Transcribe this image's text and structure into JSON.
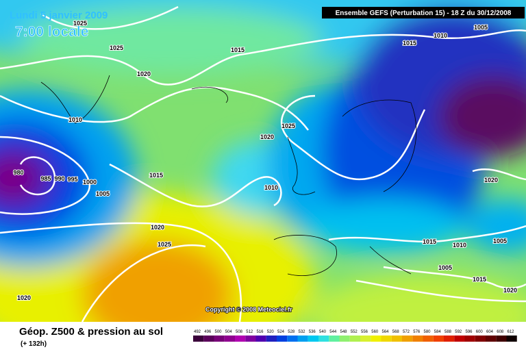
{
  "header": {
    "date": "Lundi 5 janvier 2009",
    "time": "7:00 locale",
    "model": "Ensemble GEFS (Perturbation 15)  -  18 Z du 30/12/2008"
  },
  "copyright": "Copyright © 2008 Meteociel.fr",
  "footer": {
    "title": "Géop. Z500 & pression au sol",
    "lead": "(+ 132h)"
  },
  "isobars": [
    "1025",
    "1025",
    "1015",
    "1010",
    "1005",
    "1015",
    "1020",
    "1010",
    "1025",
    "1020",
    "980",
    "985",
    "990",
    "995",
    "1000",
    "1005",
    "1015",
    "1010",
    "1020",
    "1020",
    "1025",
    "1015",
    "1010",
    "1005",
    "1005",
    "1015",
    "1020",
    "1020"
  ],
  "legend": {
    "labels": [
      492,
      496,
      500,
      504,
      508,
      512,
      516,
      520,
      524,
      528,
      532,
      536,
      540,
      544,
      548,
      552,
      556,
      560,
      564,
      568,
      572,
      576,
      580,
      584,
      588,
      592,
      596,
      600,
      604,
      608,
      612
    ],
    "colors": [
      "#3a003a",
      "#5a005a",
      "#780078",
      "#900090",
      "#b000b0",
      "#8000a0",
      "#5000b0",
      "#2020c0",
      "#0040e0",
      "#0070f0",
      "#00a0f0",
      "#00c8f0",
      "#30e0e0",
      "#60f0a0",
      "#90f070",
      "#b0f050",
      "#d8f030",
      "#f0f000",
      "#f0d800",
      "#f0c000",
      "#f0a000",
      "#f08000",
      "#f06000",
      "#f04000",
      "#e02000",
      "#c00000",
      "#a00000",
      "#800000",
      "#600000",
      "#400000",
      "#100000"
    ]
  }
}
